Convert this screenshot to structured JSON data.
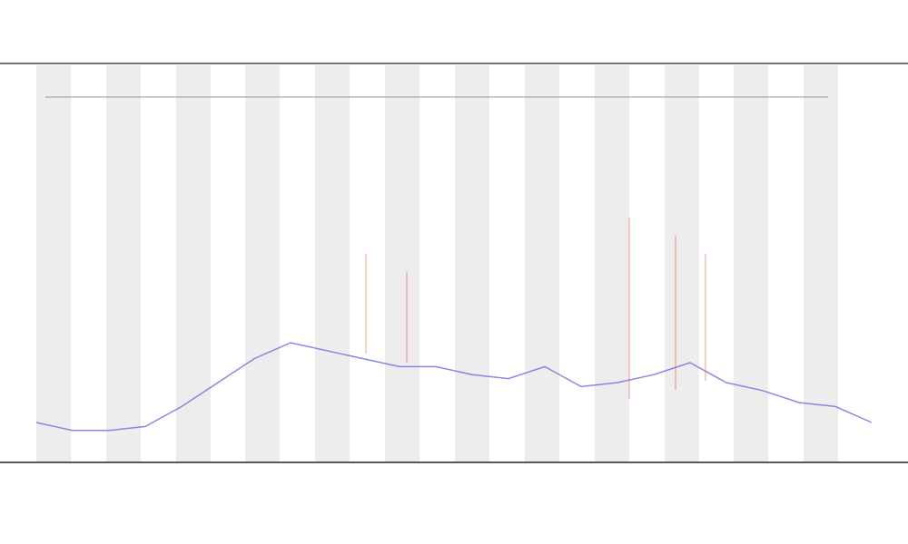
{
  "chart_data": {
    "type": "line",
    "x": [
      0,
      1,
      2,
      3,
      4,
      5,
      6,
      7,
      8,
      9,
      10,
      11,
      12,
      13,
      14,
      15,
      16,
      17,
      18,
      19,
      20,
      21,
      22,
      23
    ],
    "series": [
      {
        "color": "#6b6bdc",
        "values": [
          10,
          8,
          8,
          9,
          14,
          20,
          26,
          30,
          28,
          26,
          24,
          24,
          22,
          21,
          24,
          19,
          20,
          22,
          25,
          20,
          18,
          15,
          14,
          10
        ]
      }
    ],
    "xlim": [
      0,
      23
    ],
    "ylim": [
      0,
      100
    ],
    "grid": false
  }
}
